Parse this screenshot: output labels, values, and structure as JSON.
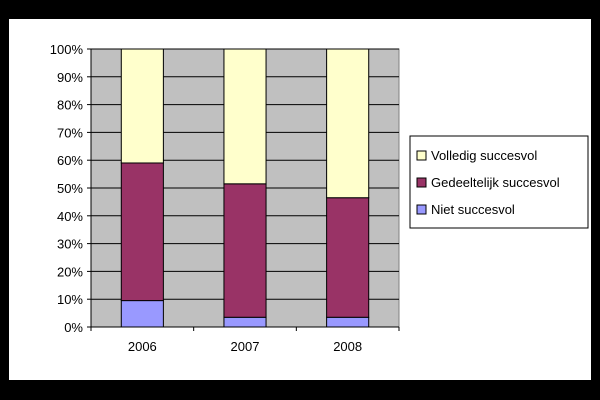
{
  "chart_data": {
    "type": "bar",
    "stacked": true,
    "percent": true,
    "categories": [
      "2006",
      "2007",
      "2008"
    ],
    "series": [
      {
        "name": "Niet succesvol",
        "color": "#9999FF",
        "values": [
          9.5,
          3.5,
          3.5
        ]
      },
      {
        "name": "Gedeeltelijk succesvol",
        "color": "#993366",
        "values": [
          49.5,
          48,
          43
        ]
      },
      {
        "name": "Volledig succesvol",
        "color": "#FFFFCC",
        "values": [
          41,
          48.5,
          53.5
        ]
      }
    ],
    "ylim": [
      0,
      100
    ],
    "yticks": [
      "0%",
      "10%",
      "20%",
      "30%",
      "40%",
      "50%",
      "60%",
      "70%",
      "80%",
      "90%",
      "100%"
    ],
    "title": "",
    "xlabel": "",
    "ylabel": "",
    "grid": true,
    "legend_position": "right",
    "plot_background": "#C0C0C0"
  }
}
